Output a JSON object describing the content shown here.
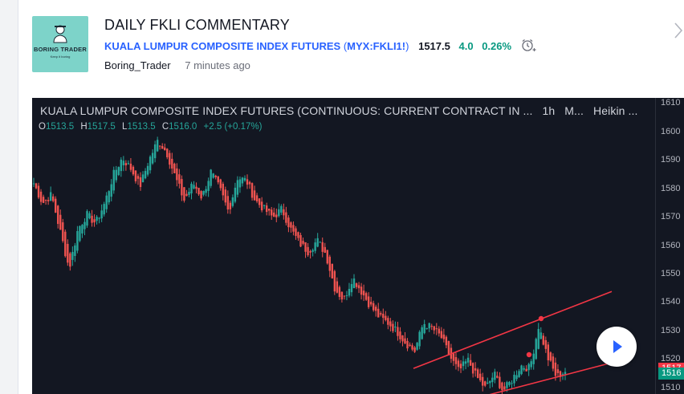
{
  "post": {
    "title": "DAILY FKLI COMMENTARY",
    "author": "Boring_Trader",
    "time_ago": "7 minutes ago",
    "avatar_text": "BORING TRADER",
    "avatar_subtext": "Keep it boring"
  },
  "symbol": {
    "name": "KUALA LUMPUR COMPOSITE INDEX FUTURES",
    "paren_open": "(",
    "ticker": "MYX:FKLI1!",
    "paren_close": ")",
    "price": "1517.5",
    "change": "4.0",
    "change_percent": "0.26%"
  },
  "chart": {
    "header_title": "KUALA LUMPUR COMPOSITE INDEX FUTURES (CONTINUOUS: CURRENT CONTRACT IN ...",
    "interval": "1h",
    "exchange": "M...",
    "chart_style": "Heikin ...",
    "ohlc": {
      "o_label": "O",
      "o": "1513.5",
      "h_label": "H",
      "h": "1517.5",
      "l_label": "L",
      "l": "1513.5",
      "c_label": "C",
      "c": "1516.0",
      "change": "+2.5 (+0.17%)"
    },
    "price_ticks": [
      "1610",
      "1600",
      "1590",
      "1580",
      "1570",
      "1560",
      "1550",
      "1540",
      "1530",
      "1520",
      "1510"
    ],
    "last_price_tag": "1517",
    "current_price_tag": "1516",
    "up_color": "#26a69a",
    "down_color": "#ef5350",
    "trendline_color": "#f23645"
  },
  "chart_data": {
    "type": "candlestick",
    "chart_style": "Heikin Ashi",
    "interval": "1h",
    "ylim": [
      1508,
      1612
    ],
    "close_path": [
      1582,
      1575,
      1578,
      1565,
      1552,
      1566,
      1571,
      1568,
      1575,
      1585,
      1591,
      1587,
      1581,
      1590,
      1597,
      1593,
      1584,
      1576,
      1582,
      1577,
      1586,
      1580,
      1572,
      1584,
      1583,
      1576,
      1573,
      1570,
      1573,
      1566,
      1561,
      1558,
      1562,
      1557,
      1545,
      1541,
      1549,
      1544,
      1539,
      1535,
      1533,
      1530,
      1526,
      1523,
      1533,
      1531,
      1528,
      1521,
      1516,
      1520,
      1514,
      1510,
      1515,
      1509,
      1513,
      1518,
      1517,
      1532,
      1521,
      1514,
      1516
    ],
    "trend_channel": {
      "upper": [
        [
          1500,
          1517
        ],
        [
          1535,
          1544
        ]
      ],
      "lower": [
        [
          1510,
          1506
        ],
        [
          1535,
          1519
        ]
      ]
    },
    "last_price": 1517,
    "current_price": 1516
  }
}
